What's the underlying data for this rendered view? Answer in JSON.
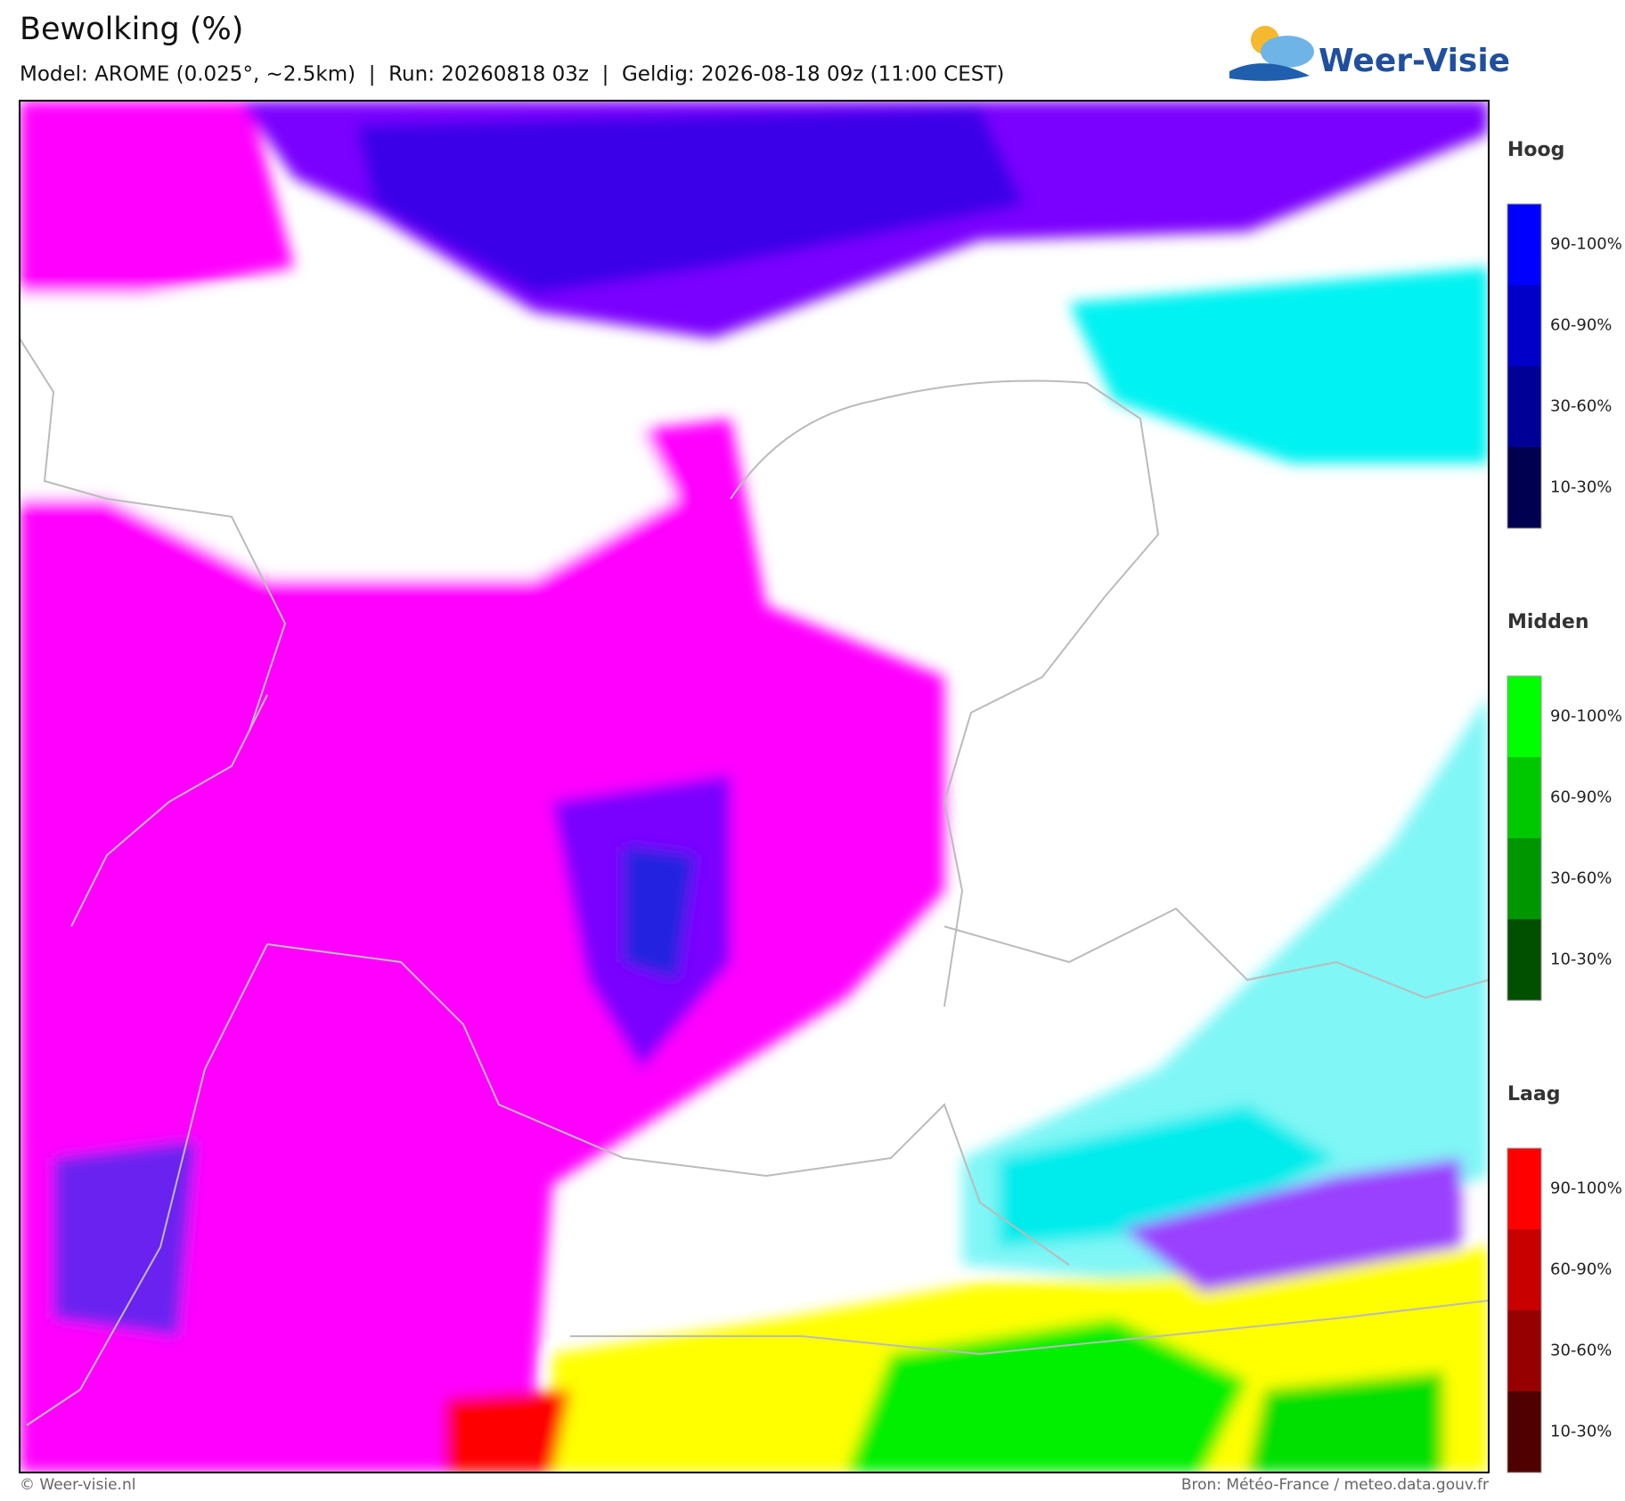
{
  "header": {
    "title": "Bewolking (%)",
    "subtitle": "Model: AROME (0.025°, ~2.5km)  |  Run: 20260818 03z  |  Geldig: 2026-08-18 09z (11:00 CEST)",
    "logo": "Weer-Visie"
  },
  "legend": [
    {
      "title": "Hoog",
      "levels": [
        "90-100%",
        "60-90%",
        "30-60%",
        "10-30%"
      ],
      "colors": [
        "#0000ff",
        "#0000c8",
        "#000096",
        "#000050"
      ]
    },
    {
      "title": "Midden",
      "levels": [
        "90-100%",
        "60-90%",
        "30-60%",
        "10-30%"
      ],
      "colors": [
        "#00ff00",
        "#00c800",
        "#009600",
        "#005000"
      ]
    },
    {
      "title": "Laag",
      "levels": [
        "90-100%",
        "60-90%",
        "30-60%",
        "10-30%"
      ],
      "colors": [
        "#ff0000",
        "#c80000",
        "#960000",
        "#500000"
      ]
    }
  ],
  "footer": {
    "left": "© Weer-visie.nl",
    "right": "Bron: Météo-France / meteo.data.gouv.fr"
  }
}
